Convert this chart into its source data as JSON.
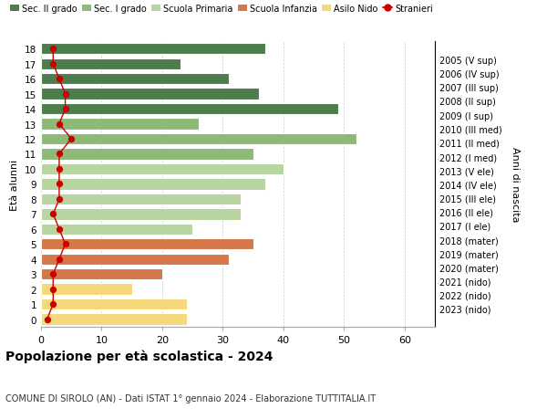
{
  "ages": [
    0,
    1,
    2,
    3,
    4,
    5,
    6,
    7,
    8,
    9,
    10,
    11,
    12,
    13,
    14,
    15,
    16,
    17,
    18
  ],
  "years": [
    "2023 (nido)",
    "2022 (nido)",
    "2021 (nido)",
    "2020 (mater)",
    "2019 (mater)",
    "2018 (mater)",
    "2017 (I ele)",
    "2016 (II ele)",
    "2015 (III ele)",
    "2014 (IV ele)",
    "2013 (V ele)",
    "2012 (I med)",
    "2011 (II med)",
    "2010 (III med)",
    "2009 (I sup)",
    "2008 (II sup)",
    "2007 (III sup)",
    "2006 (IV sup)",
    "2005 (V sup)"
  ],
  "bar_values": [
    24,
    24,
    15,
    20,
    31,
    35,
    25,
    33,
    33,
    37,
    40,
    35,
    52,
    26,
    49,
    36,
    31,
    23,
    37
  ],
  "bar_colors": [
    "#f5d87a",
    "#f5d87a",
    "#f5d87a",
    "#d4784a",
    "#d4784a",
    "#d4784a",
    "#b8d4a0",
    "#b8d4a0",
    "#b8d4a0",
    "#b8d4a0",
    "#b8d4a0",
    "#8eba78",
    "#8eba78",
    "#8eba78",
    "#4d7c4d",
    "#4d7c4d",
    "#4d7c4d",
    "#4d7c4d",
    "#4d7c4d"
  ],
  "stranieri_values": [
    1,
    2,
    2,
    2,
    3,
    4,
    3,
    2,
    3,
    3,
    3,
    3,
    5,
    3,
    4,
    4,
    3,
    2,
    2
  ],
  "legend_labels": [
    "Sec. II grado",
    "Sec. I grado",
    "Scuola Primaria",
    "Scuola Infanzia",
    "Asilo Nido",
    "Stranieri"
  ],
  "legend_colors": [
    "#4d7c4d",
    "#8eba78",
    "#b8d4a0",
    "#d4784a",
    "#f5d87a",
    "#cc0000"
  ],
  "ylabel_left": "Età alunni",
  "ylabel_right": "Anni di nascita",
  "title": "Popolazione per età scolastica - 2024",
  "subtitle": "COMUNE DI SIROLO (AN) - Dati ISTAT 1° gennaio 2024 - Elaborazione TUTTITALIA.IT",
  "xlim": [
    0,
    65
  ],
  "background_color": "#ffffff",
  "grid_color": "#cccccc"
}
